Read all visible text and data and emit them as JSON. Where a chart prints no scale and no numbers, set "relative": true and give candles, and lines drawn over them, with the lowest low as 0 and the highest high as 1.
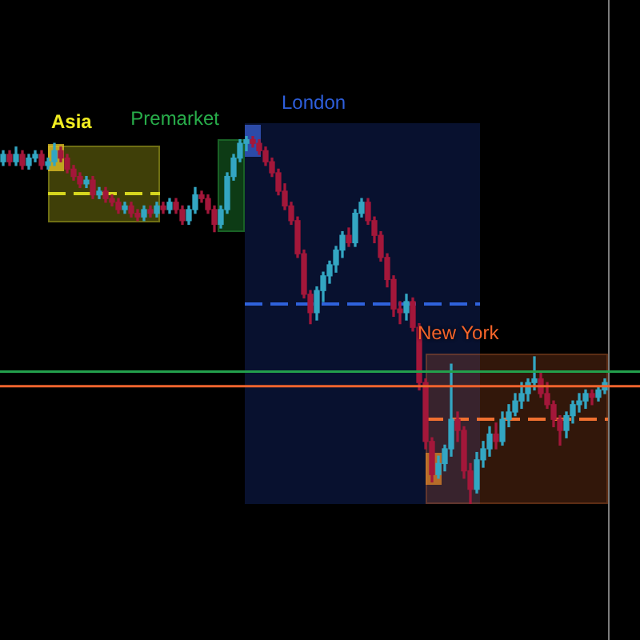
{
  "chart_data": {
    "type": "candlestick",
    "relative": true,
    "categories": [
      null,
      null,
      null,
      null,
      null,
      null,
      null,
      null,
      null,
      null,
      null,
      null,
      null,
      null,
      null,
      null,
      null,
      null,
      null,
      null,
      null,
      null,
      null,
      null,
      null,
      null,
      null,
      null,
      null,
      null,
      null,
      null,
      null,
      null,
      null,
      null,
      null,
      null,
      null,
      null,
      null,
      null,
      null,
      null,
      null,
      null,
      null,
      null,
      null,
      null,
      null,
      null,
      null,
      null,
      null,
      null,
      null,
      null,
      null,
      null,
      null,
      null,
      null,
      null,
      null,
      null,
      null,
      null,
      null,
      null,
      null,
      null,
      null,
      null,
      null,
      null,
      null,
      null,
      null,
      null,
      null,
      null,
      null,
      null,
      null,
      null,
      null,
      null,
      null,
      null,
      null,
      null,
      null,
      null,
      null
    ],
    "ohlc": [
      [
        0.93,
        0.96,
        0.92,
        0.95
      ],
      [
        0.95,
        0.96,
        0.92,
        0.93
      ],
      [
        0.93,
        0.97,
        0.92,
        0.95
      ],
      [
        0.95,
        0.96,
        0.91,
        0.92
      ],
      [
        0.92,
        0.95,
        0.91,
        0.94
      ],
      [
        0.94,
        0.96,
        0.93,
        0.95
      ],
      [
        0.95,
        0.96,
        0.91,
        0.92
      ],
      [
        0.92,
        0.94,
        0.91,
        0.93
      ],
      [
        0.93,
        0.98,
        0.92,
        0.96
      ],
      [
        0.96,
        0.97,
        0.93,
        0.94
      ],
      [
        0.94,
        0.95,
        0.9,
        0.91
      ],
      [
        0.91,
        0.92,
        0.88,
        0.89
      ],
      [
        0.89,
        0.9,
        0.86,
        0.87
      ],
      [
        0.87,
        0.89,
        0.86,
        0.88
      ],
      [
        0.88,
        0.89,
        0.83,
        0.84
      ],
      [
        0.84,
        0.86,
        0.83,
        0.85
      ],
      [
        0.85,
        0.86,
        0.82,
        0.83
      ],
      [
        0.83,
        0.84,
        0.81,
        0.82
      ],
      [
        0.82,
        0.83,
        0.79,
        0.8
      ],
      [
        0.8,
        0.82,
        0.79,
        0.81
      ],
      [
        0.81,
        0.82,
        0.78,
        0.79
      ],
      [
        0.79,
        0.8,
        0.77,
        0.78
      ],
      [
        0.78,
        0.81,
        0.77,
        0.8
      ],
      [
        0.8,
        0.81,
        0.78,
        0.79
      ],
      [
        0.79,
        0.82,
        0.78,
        0.81
      ],
      [
        0.81,
        0.82,
        0.79,
        0.8
      ],
      [
        0.8,
        0.83,
        0.79,
        0.82
      ],
      [
        0.82,
        0.83,
        0.79,
        0.8
      ],
      [
        0.8,
        0.81,
        0.76,
        0.77
      ],
      [
        0.77,
        0.81,
        0.76,
        0.8
      ],
      [
        0.8,
        0.86,
        0.79,
        0.84
      ],
      [
        0.84,
        0.85,
        0.82,
        0.83
      ],
      [
        0.83,
        0.84,
        0.79,
        0.8
      ],
      [
        0.8,
        0.81,
        0.74,
        0.76
      ],
      [
        0.76,
        0.81,
        0.75,
        0.8
      ],
      [
        0.8,
        0.9,
        0.79,
        0.89
      ],
      [
        0.89,
        0.95,
        0.88,
        0.94
      ],
      [
        0.94,
        0.99,
        0.93,
        0.98
      ],
      [
        0.98,
        1.0,
        0.96,
        0.99
      ],
      [
        0.99,
        1.0,
        0.97,
        0.98
      ],
      [
        0.98,
        0.99,
        0.95,
        0.96
      ],
      [
        0.96,
        0.97,
        0.92,
        0.93
      ],
      [
        0.93,
        0.94,
        0.89,
        0.9
      ],
      [
        0.9,
        0.91,
        0.84,
        0.85
      ],
      [
        0.85,
        0.87,
        0.8,
        0.81
      ],
      [
        0.81,
        0.82,
        0.76,
        0.77
      ],
      [
        0.77,
        0.78,
        0.67,
        0.68
      ],
      [
        0.68,
        0.69,
        0.56,
        0.57
      ],
      [
        0.57,
        0.58,
        0.49,
        0.52
      ],
      [
        0.52,
        0.59,
        0.5,
        0.58
      ],
      [
        0.58,
        0.63,
        0.55,
        0.62
      ],
      [
        0.62,
        0.66,
        0.6,
        0.65
      ],
      [
        0.65,
        0.7,
        0.63,
        0.69
      ],
      [
        0.69,
        0.74,
        0.67,
        0.73
      ],
      [
        0.73,
        0.75,
        0.7,
        0.71
      ],
      [
        0.71,
        0.8,
        0.7,
        0.79
      ],
      [
        0.79,
        0.83,
        0.78,
        0.82
      ],
      [
        0.82,
        0.83,
        0.76,
        0.77
      ],
      [
        0.77,
        0.78,
        0.71,
        0.73
      ],
      [
        0.73,
        0.74,
        0.66,
        0.67
      ],
      [
        0.67,
        0.68,
        0.59,
        0.61
      ],
      [
        0.61,
        0.62,
        0.51,
        0.53
      ],
      [
        0.53,
        0.55,
        0.49,
        0.52
      ],
      [
        0.52,
        0.57,
        0.5,
        0.55
      ],
      [
        0.55,
        0.56,
        0.47,
        0.48
      ],
      [
        0.48,
        0.49,
        0.31,
        0.33
      ],
      [
        0.33,
        0.34,
        0.15,
        0.17
      ],
      [
        0.17,
        0.18,
        0.06,
        0.08
      ],
      [
        0.08,
        0.13,
        0.07,
        0.11
      ],
      [
        0.11,
        0.16,
        0.09,
        0.15
      ],
      [
        0.15,
        0.38,
        0.13,
        0.23
      ],
      [
        0.23,
        0.25,
        0.17,
        0.2
      ],
      [
        0.2,
        0.21,
        0.07,
        0.09
      ],
      [
        0.09,
        0.11,
        0.0,
        0.04
      ],
      [
        0.04,
        0.14,
        0.03,
        0.12
      ],
      [
        0.12,
        0.17,
        0.1,
        0.15
      ],
      [
        0.15,
        0.21,
        0.13,
        0.19
      ],
      [
        0.19,
        0.22,
        0.15,
        0.17
      ],
      [
        0.17,
        0.25,
        0.16,
        0.23
      ],
      [
        0.23,
        0.27,
        0.21,
        0.25
      ],
      [
        0.25,
        0.3,
        0.24,
        0.28
      ],
      [
        0.28,
        0.33,
        0.26,
        0.3
      ],
      [
        0.3,
        0.34,
        0.28,
        0.33
      ],
      [
        0.33,
        0.4,
        0.31,
        0.34
      ],
      [
        0.34,
        0.36,
        0.29,
        0.3
      ],
      [
        0.3,
        0.33,
        0.26,
        0.27
      ],
      [
        0.27,
        0.28,
        0.21,
        0.23
      ],
      [
        0.23,
        0.24,
        0.16,
        0.2
      ],
      [
        0.2,
        0.25,
        0.18,
        0.24
      ],
      [
        0.24,
        0.28,
        0.22,
        0.27
      ],
      [
        0.27,
        0.3,
        0.25,
        0.28
      ],
      [
        0.28,
        0.31,
        0.26,
        0.3
      ],
      [
        0.3,
        0.31,
        0.27,
        0.29
      ],
      [
        0.29,
        0.32,
        0.28,
        0.31
      ],
      [
        0.31,
        0.34,
        0.3,
        0.33
      ]
    ],
    "colors": [
      "#33a6c2",
      "#a3173a",
      "#33a6c2",
      "#a3173a",
      "#33a6c2",
      "#33a6c2",
      "#a3173a",
      "#33a6c2",
      "#33a6c2",
      "#a3173a",
      "#a3173a",
      "#a3173a",
      "#a3173a",
      "#33a6c2",
      "#a3173a",
      "#33a6c2",
      "#a3173a",
      "#a3173a",
      "#a3173a",
      "#33a6c2",
      "#a3173a",
      "#a3173a",
      "#33a6c2",
      "#a3173a",
      "#33a6c2",
      "#a3173a",
      "#33a6c2",
      "#a3173a",
      "#a3173a",
      "#33a6c2",
      "#33a6c2",
      "#a3173a",
      "#a3173a",
      "#a3173a",
      "#33a6c2",
      "#33a6c2",
      "#33a6c2",
      "#33a6c2",
      "#33a6c2",
      "#a3173a",
      "#a3173a",
      "#a3173a",
      "#a3173a",
      "#a3173a",
      "#a3173a",
      "#a3173a",
      "#a3173a",
      "#a3173a",
      "#a3173a",
      "#33a6c2",
      "#33a6c2",
      "#33a6c2",
      "#33a6c2",
      "#33a6c2",
      "#a3173a",
      "#33a6c2",
      "#33a6c2",
      "#a3173a",
      "#a3173a",
      "#a3173a",
      "#a3173a",
      "#a3173a",
      "#a3173a",
      "#33a6c2",
      "#a3173a",
      "#a3173a",
      "#a3173a",
      "#a3173a",
      "#33a6c2",
      "#33a6c2",
      "#33a6c2",
      "#a3173a",
      "#a3173a",
      "#a3173a",
      "#33a6c2",
      "#33a6c2",
      "#33a6c2",
      "#a3173a",
      "#33a6c2",
      "#33a6c2",
      "#33a6c2",
      "#33a6c2",
      "#33a6c2",
      "#33a6c2",
      "#a3173a",
      "#a3173a",
      "#a3173a",
      "#a3173a",
      "#33a6c2",
      "#33a6c2",
      "#33a6c2",
      "#33a6c2",
      "#a3173a",
      "#33a6c2",
      "#33a6c2"
    ],
    "ref_lines": [
      {
        "axis": "y",
        "value": 0.36,
        "color": "#23a04c"
      },
      {
        "axis": "y",
        "value": 0.32,
        "color": "#f0642e"
      }
    ],
    "annotations": [
      "Asia",
      "Premarket",
      "London",
      "New York"
    ]
  }
}
